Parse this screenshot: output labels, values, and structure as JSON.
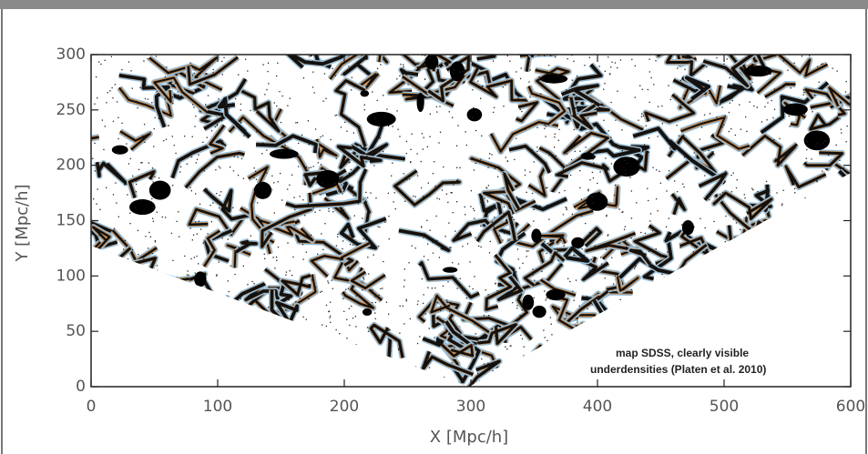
{
  "chart_data": {
    "type": "map",
    "xlabel": "X [Mpc/h]",
    "ylabel": "Y [Mpc/h]",
    "xlim": [
      0,
      600
    ],
    "xticks": [
      0,
      100,
      200,
      300,
      400,
      500,
      600
    ],
    "ylim": [
      0,
      300
    ],
    "yticks": [
      0,
      50,
      100,
      150,
      200,
      250,
      300
    ],
    "annotation": [
      "map SDSS, clearly visible",
      "underdensities (Platen et al. 2010)"
    ]
  }
}
